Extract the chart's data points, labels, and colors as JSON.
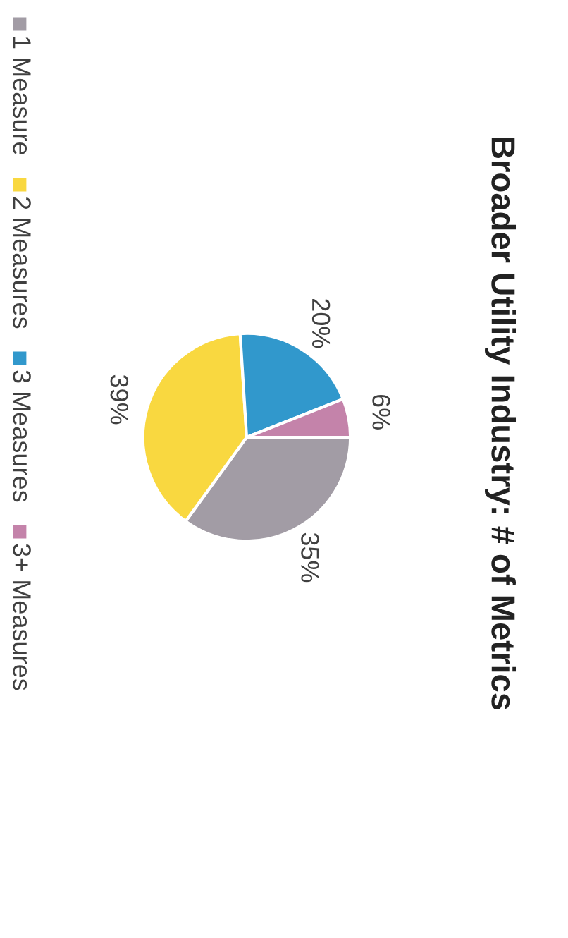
{
  "chart_data": {
    "type": "pie",
    "title": "Broader Utility Industry: # of Metrics",
    "categories": [
      "1 Measure",
      "2 Measures",
      "3 Measures",
      "3+ Measures"
    ],
    "values": [
      35,
      39,
      20,
      6
    ],
    "value_labels": [
      "35%",
      "39%",
      "20%",
      "6%"
    ],
    "colors": [
      "#a29ca5",
      "#f9d840",
      "#3198cc",
      "#c483aa"
    ],
    "legend": "left"
  }
}
